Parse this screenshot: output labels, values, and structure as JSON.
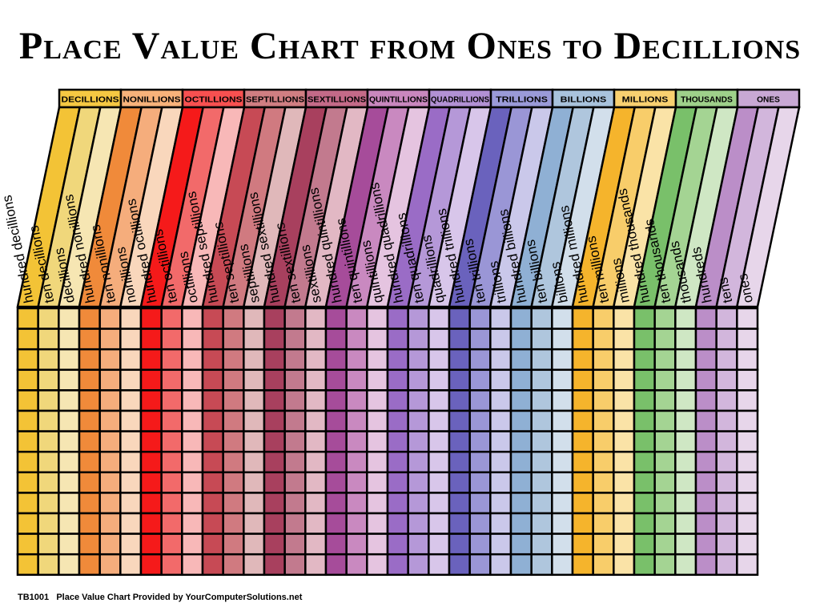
{
  "title": "Place Value Chart from Ones to Decillions",
  "footer": {
    "code": "TB1001",
    "text": "Place Value Chart Provided by YourComputerSolutions.net"
  },
  "periods": [
    {
      "name": "DECILLIONS",
      "color": "#f5c842",
      "columns": [
        {
          "label": "hundred decillions",
          "color": "#f3c336"
        },
        {
          "label": "ten decillions",
          "color": "#f0d77b"
        },
        {
          "label": "decillions",
          "color": "#f6e6b3"
        }
      ]
    },
    {
      "name": "NONILLIONS",
      "color": "#f7b27a",
      "columns": [
        {
          "label": "hundred nonillions",
          "color": "#f08a3a"
        },
        {
          "label": "ten nonillions",
          "color": "#f5ad7c"
        },
        {
          "label": "nonillions",
          "color": "#f9d7bc"
        }
      ]
    },
    {
      "name": "OCTILLIONS",
      "color": "#f75050",
      "columns": [
        {
          "label": "hundred octillions",
          "color": "#f51a1a"
        },
        {
          "label": "ten octillions",
          "color": "#f26a6a"
        },
        {
          "label": "octillions",
          "color": "#f8b8b8"
        }
      ]
    },
    {
      "name": "SEPTILLIONS",
      "color": "#d07e82",
      "columns": [
        {
          "label": "hundred septillions",
          "color": "#c74a55"
        },
        {
          "label": "ten septillions",
          "color": "#d07a80"
        },
        {
          "label": "septillions",
          "color": "#e0b8ba"
        }
      ]
    },
    {
      "name": "SEXTILLIONS",
      "color": "#c46a88",
      "columns": [
        {
          "label": "hundred sextillions",
          "color": "#a8405e"
        },
        {
          "label": "ten sextillions",
          "color": "#c27a8e"
        },
        {
          "label": "sextillions",
          "color": "#e2b8c4"
        }
      ]
    },
    {
      "name": "QUINTILLIONS",
      "color": "#c987be",
      "columns": [
        {
          "label": "hundred quintillions",
          "color": "#a64c9a"
        },
        {
          "label": "ten quintillions",
          "color": "#c989c0"
        },
        {
          "label": "quintillions",
          "color": "#e5c4e0"
        }
      ]
    },
    {
      "name": "QUADRILLIONS",
      "color": "#b291d4",
      "columns": [
        {
          "label": "hundred quadrillions",
          "color": "#9a6cc6"
        },
        {
          "label": "ten quadrillions",
          "color": "#b598d8"
        },
        {
          "label": "quadrillions",
          "color": "#d8c6ea"
        }
      ]
    },
    {
      "name": "TRILLIONS",
      "color": "#9a9ad8",
      "columns": [
        {
          "label": "hundred trillions",
          "color": "#6a62bd"
        },
        {
          "label": "ten trillions",
          "color": "#9a96d6"
        },
        {
          "label": "trillions",
          "color": "#cac8ea"
        }
      ]
    },
    {
      "name": "BILLIONS",
      "color": "#a8c2dc",
      "columns": [
        {
          "label": "hundred billions",
          "color": "#8fb0d4"
        },
        {
          "label": "ten billions",
          "color": "#afc6dd"
        },
        {
          "label": "billions",
          "color": "#d2dfeb"
        }
      ]
    },
    {
      "name": "MILLIONS",
      "color": "#f8d070",
      "columns": [
        {
          "label": "hundred millions",
          "color": "#f5b42c"
        },
        {
          "label": "ten millions",
          "color": "#f8cd6a"
        },
        {
          "label": "millions",
          "color": "#fae3a7"
        }
      ]
    },
    {
      "name": "THOUSANDS",
      "color": "#9ed08a",
      "columns": [
        {
          "label": "hundred thousands",
          "color": "#79c06a"
        },
        {
          "label": "ten thousands",
          "color": "#a4d493"
        },
        {
          "label": "thousands",
          "color": "#cfe7c4"
        }
      ]
    },
    {
      "name": "ONES",
      "color": "#c8a8d4",
      "columns": [
        {
          "label": "hundreds",
          "color": "#bb8ec8"
        },
        {
          "label": "tens",
          "color": "#d2b6dc"
        },
        {
          "label": "ones",
          "color": "#e7d6ea"
        }
      ]
    }
  ],
  "grid_rows": 13
}
